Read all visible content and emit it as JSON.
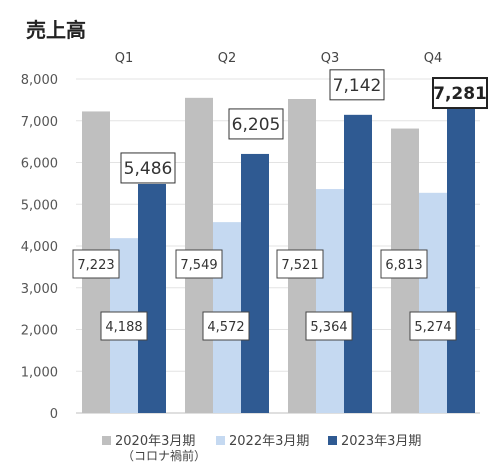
{
  "chart_data": {
    "type": "bar",
    "title": "売上高",
    "categories": [
      "Q1",
      "Q2",
      "Q3",
      "Q4"
    ],
    "ylim": [
      0,
      8000
    ],
    "yticks": [
      "0",
      "1,000",
      "2,000",
      "3,000",
      "4,000",
      "5,000",
      "6,000",
      "7,000",
      "8,000"
    ],
    "series": [
      {
        "name": "2020年3月期",
        "note": "（コロナ禍前）",
        "color": "#bfbfbf",
        "values": [
          7223,
          7549,
          7521,
          6813
        ],
        "labels": [
          "7,223",
          "7,549",
          "7,521",
          "6,813"
        ]
      },
      {
        "name": "2022年3月期",
        "color": "#c5d9f1",
        "values": [
          4188,
          4572,
          5364,
          5274
        ],
        "labels": [
          "4,188",
          "4,572",
          "5,364",
          "5,274"
        ]
      },
      {
        "name": "2023年3月期",
        "color": "#2f5a92",
        "values": [
          5486,
          6205,
          7142,
          7281
        ],
        "labels": [
          "5,486",
          "6,205",
          "7,142",
          "7,281"
        ]
      }
    ],
    "grid": true,
    "legend": "bottom"
  }
}
